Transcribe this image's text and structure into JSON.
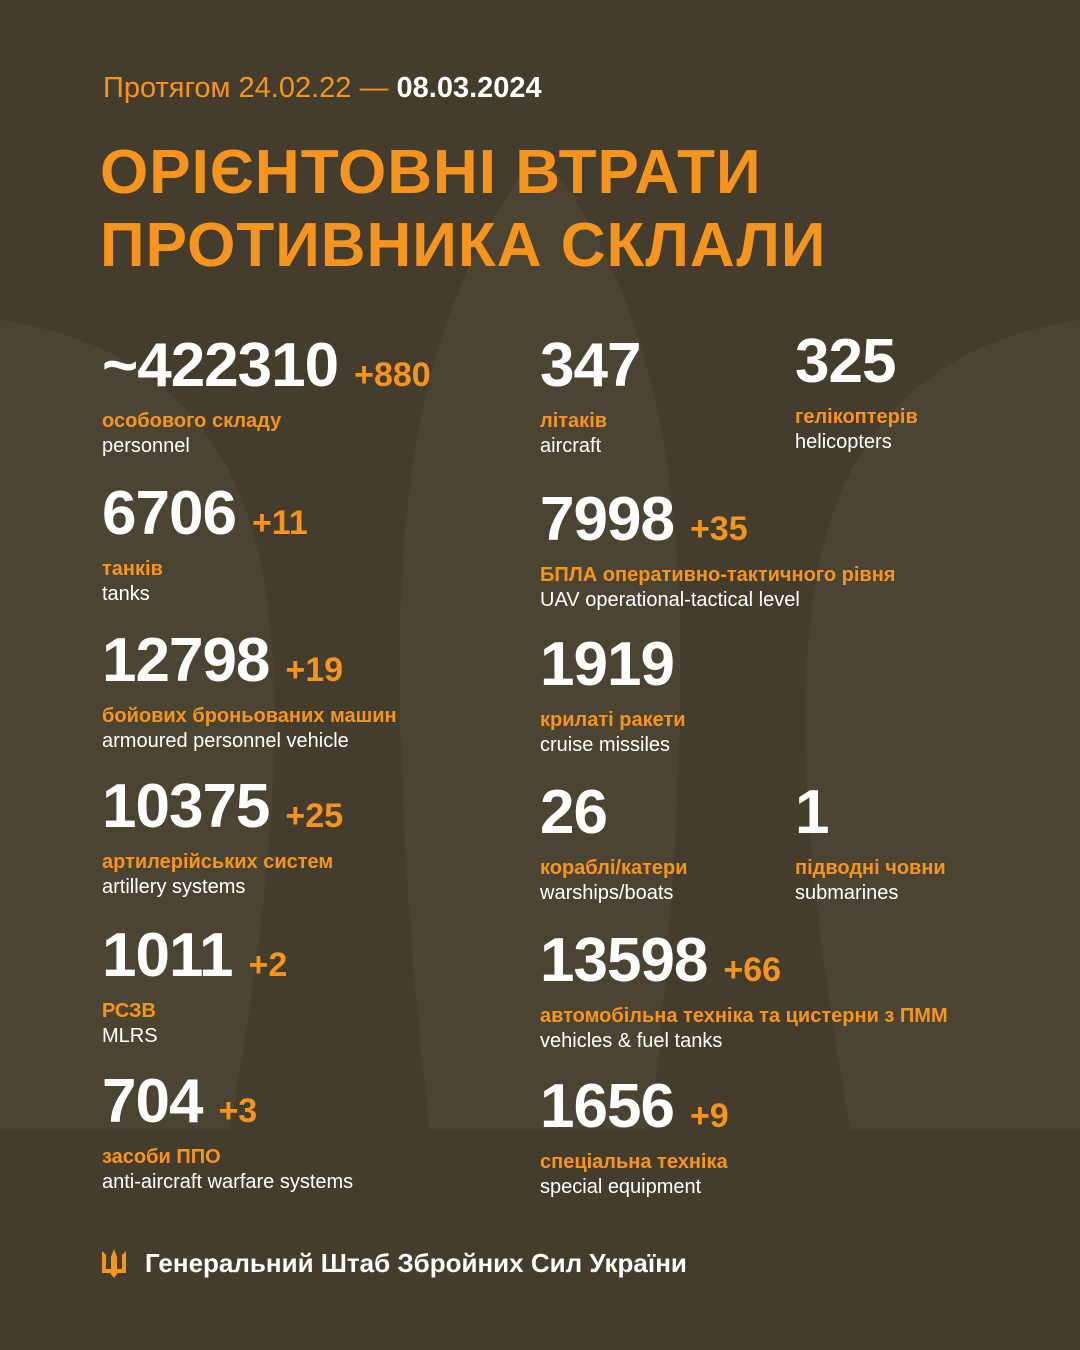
{
  "header": {
    "period": "Протягом 24.02.22 —",
    "date": "08.03.2024",
    "title": [
      "ОРІЄНТОВНІ ВТРАТИ",
      "ПРОТИВНИКА СКЛАЛИ"
    ]
  },
  "items": [
    {
      "value": "~422310",
      "delta": "+880",
      "label_uk": "особового складу",
      "label_en": "personnel"
    },
    {
      "value": "6706",
      "delta": "+11",
      "label_uk": "танків",
      "label_en": "tanks"
    },
    {
      "value": "12798",
      "delta": "+19",
      "label_uk": "бойових броньованих машин",
      "label_en": "armoured personnel vehicle"
    },
    {
      "value": "10375",
      "delta": "+25",
      "label_uk": "артилерійських систем",
      "label_en": "artillery systems"
    },
    {
      "value": "1011",
      "delta": "+2",
      "label_uk": "РСЗВ",
      "label_en": "MLRS"
    },
    {
      "value": "704",
      "delta": "+3",
      "label_uk": "засоби ППО",
      "label_en": "anti-aircraft warfare systems"
    },
    {
      "value": "347",
      "label_uk": "літаків",
      "label_en": "aircraft"
    },
    {
      "value": "325",
      "label_uk": "гелікоптерів",
      "label_en": "helicopters"
    },
    {
      "value": "7998",
      "delta": "+35",
      "label_uk": "БПЛА оперативно-тактичного рівня",
      "label_en": "UAV operational-tactical level"
    },
    {
      "value": "1919",
      "label_uk": "крилаті ракети",
      "label_en": "cruise missiles"
    },
    {
      "value": "26",
      "label_uk": "кораблі/катери",
      "label_en": "warships/boats"
    },
    {
      "value": "1",
      "label_uk": "підводні човни",
      "label_en": "submarines"
    },
    {
      "value": "13598",
      "delta": "+66",
      "label_uk": "автомобільна техніка та цистерни з ПММ",
      "label_en": "vehicles & fuel tanks"
    },
    {
      "value": "1656",
      "delta": "+9",
      "label_uk": "спеціальна техніка",
      "label_en": "special equipment"
    }
  ],
  "footer": "Генеральний Штаб Збройних Сил України"
}
